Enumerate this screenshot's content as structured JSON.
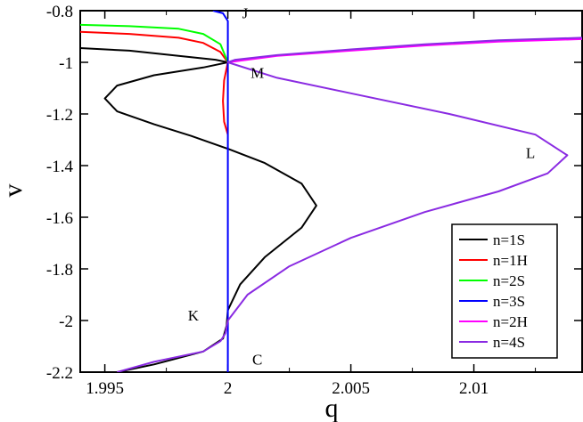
{
  "chart_data": {
    "type": "line",
    "xlabel": "q",
    "ylabel": "v",
    "xlim": [
      1.994,
      2.0144
    ],
    "ylim": [
      -2.2,
      -0.8
    ],
    "x_ticks": [
      {
        "value": 1.995,
        "label": "1.995"
      },
      {
        "value": 2.0,
        "label": "2"
      },
      {
        "value": 2.005,
        "label": "2.005"
      },
      {
        "value": 2.01,
        "label": "2.01"
      }
    ],
    "y_ticks": [
      {
        "value": -0.8,
        "label": "-0.8"
      },
      {
        "value": -1.0,
        "label": "-1"
      },
      {
        "value": -1.2,
        "label": "-1.2"
      },
      {
        "value": -1.4,
        "label": "-1.4"
      },
      {
        "value": -1.6,
        "label": "-1.6"
      },
      {
        "value": -1.8,
        "label": "-1.8"
      },
      {
        "value": -2.0,
        "label": "-2"
      },
      {
        "value": -2.2,
        "label": "-2.2"
      }
    ],
    "legend_position": "bottom-right",
    "series": [
      {
        "name": "n=1S",
        "color": "#000000",
        "points": [
          [
            1.994,
            -0.945
          ],
          [
            1.996,
            -0.955
          ],
          [
            1.998,
            -0.975
          ],
          [
            1.9995,
            -0.99
          ],
          [
            2.0,
            -1.0
          ],
          [
            1.999,
            -1.02
          ],
          [
            1.997,
            -1.05
          ],
          [
            1.9955,
            -1.09
          ],
          [
            1.995,
            -1.14
          ],
          [
            1.9955,
            -1.19
          ],
          [
            1.997,
            -1.24
          ],
          [
            1.9985,
            -1.285
          ],
          [
            2.0,
            -1.335
          ],
          [
            2.0015,
            -1.39
          ],
          [
            2.003,
            -1.47
          ],
          [
            2.0036,
            -1.555
          ],
          [
            2.003,
            -1.64
          ],
          [
            2.0015,
            -1.755
          ],
          [
            2.0005,
            -1.86
          ],
          [
            2.0,
            -1.96
          ],
          [
            1.99995,
            -2.02
          ],
          [
            1.9998,
            -2.07
          ],
          [
            1.999,
            -2.12
          ],
          [
            1.997,
            -2.17
          ],
          [
            1.9955,
            -2.2
          ]
        ]
      },
      {
        "name": "n=1H",
        "color": "#ff0000",
        "points": [
          [
            1.994,
            -0.882
          ],
          [
            1.996,
            -0.89
          ],
          [
            1.998,
            -0.905
          ],
          [
            1.999,
            -0.925
          ],
          [
            1.9997,
            -0.96
          ],
          [
            2.0,
            -1.0
          ],
          [
            1.99985,
            -1.07
          ],
          [
            1.9998,
            -1.15
          ],
          [
            1.99985,
            -1.23
          ],
          [
            2.0,
            -1.28
          ]
        ]
      },
      {
        "name": "n=2S",
        "color": "#00ff00",
        "points": [
          [
            1.994,
            -0.855
          ],
          [
            1.996,
            -0.86
          ],
          [
            1.998,
            -0.87
          ],
          [
            1.999,
            -0.89
          ],
          [
            1.9997,
            -0.93
          ],
          [
            2.0,
            -1.0
          ]
        ]
      },
      {
        "name": "n=3S",
        "color": "#0000ff",
        "points": [
          [
            1.9994,
            -0.8
          ],
          [
            1.9998,
            -0.81
          ],
          [
            2.0,
            -0.84
          ],
          [
            2.0,
            -1.0
          ],
          [
            2.0,
            -2.2
          ]
        ]
      },
      {
        "name": "n=2H",
        "color": "#ff00ff",
        "points": [
          [
            2.0,
            -1.0
          ],
          [
            2.002,
            -0.975
          ],
          [
            2.005,
            -0.955
          ],
          [
            2.008,
            -0.935
          ],
          [
            2.011,
            -0.92
          ],
          [
            2.0144,
            -0.91
          ]
        ]
      },
      {
        "name": "n=4S",
        "color": "#8a2be2",
        "points": [
          [
            2.0144,
            -0.905
          ],
          [
            2.011,
            -0.915
          ],
          [
            2.008,
            -0.93
          ],
          [
            2.005,
            -0.95
          ],
          [
            2.002,
            -0.972
          ],
          [
            2.0003,
            -0.99
          ],
          [
            2.0,
            -1.0
          ],
          [
            2.002,
            -1.06
          ],
          [
            2.005,
            -1.12
          ],
          [
            2.009,
            -1.2
          ],
          [
            2.0125,
            -1.28
          ],
          [
            2.0138,
            -1.36
          ],
          [
            2.013,
            -1.43
          ],
          [
            2.011,
            -1.5
          ],
          [
            2.008,
            -1.58
          ],
          [
            2.005,
            -1.68
          ],
          [
            2.0025,
            -1.79
          ],
          [
            2.0008,
            -1.9
          ],
          [
            2.0,
            -2.0
          ],
          [
            1.9999,
            -2.05
          ],
          [
            1.9997,
            -2.08
          ],
          [
            1.999,
            -2.12
          ],
          [
            1.997,
            -2.16
          ],
          [
            1.9955,
            -2.2
          ]
        ]
      }
    ],
    "annotations": [
      {
        "text": "J",
        "x": 2.0007,
        "y": -0.83
      },
      {
        "text": "M",
        "x": 2.0012,
        "y": -1.06
      },
      {
        "text": "L",
        "x": 2.0123,
        "y": -1.37
      },
      {
        "text": "K",
        "x": 1.9986,
        "y": -2.0
      },
      {
        "text": "C",
        "x": 2.0012,
        "y": -2.17
      }
    ]
  }
}
